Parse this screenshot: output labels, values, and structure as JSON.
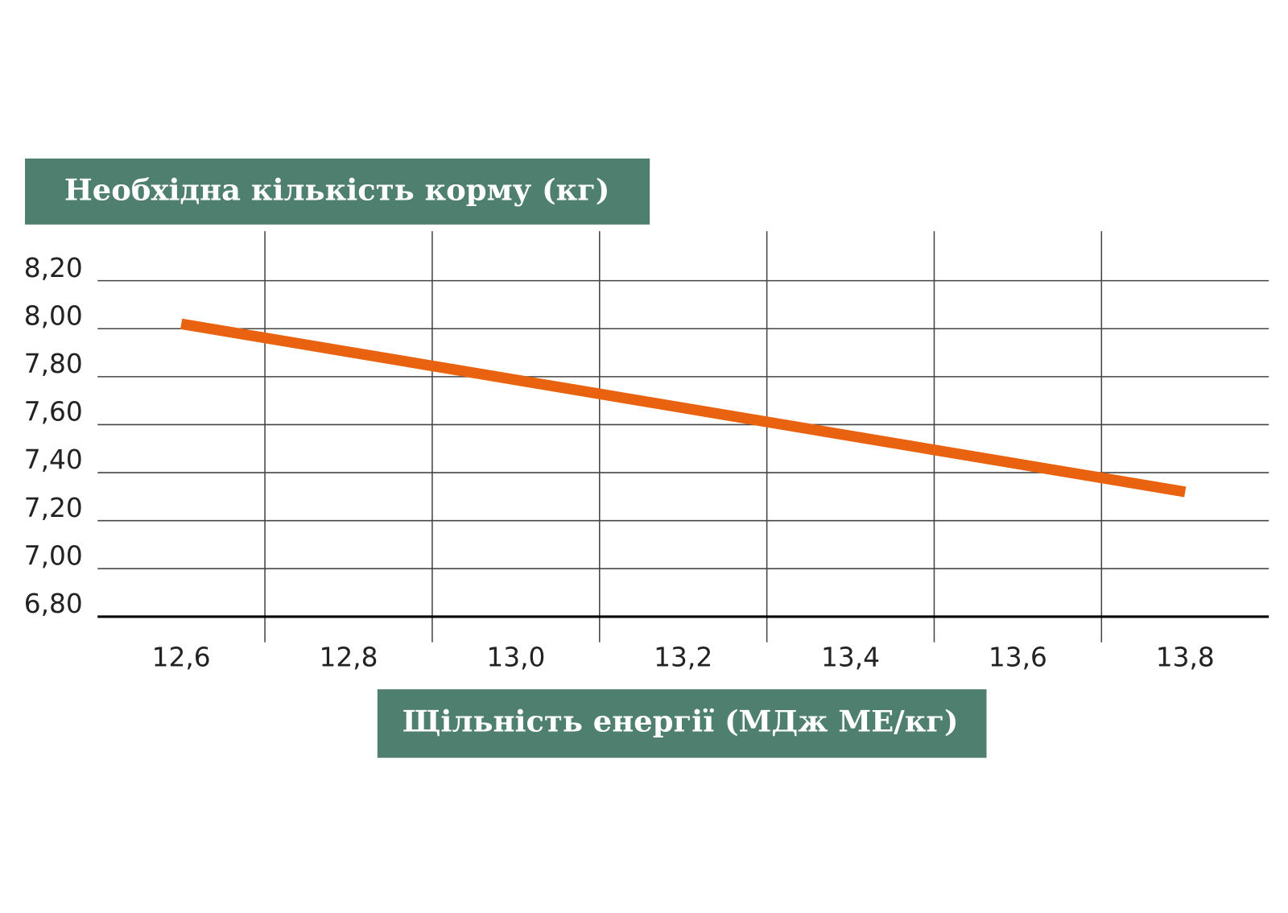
{
  "chart_data": {
    "type": "line",
    "y_label": "Необхідна кількість корму (кг)",
    "x_label": "Щільність енергії (МДж МЕ/кг)",
    "x": [
      12.6,
      13.8
    ],
    "values": [
      8.02,
      7.32
    ],
    "color": "#e8620f",
    "xlim": [
      12.5,
      13.9
    ],
    "xticks": [
      {
        "value": 12.6,
        "label": "12,6"
      },
      {
        "value": 12.8,
        "label": "12,8"
      },
      {
        "value": 13.0,
        "label": "13,0"
      },
      {
        "value": 13.2,
        "label": "13,2"
      },
      {
        "value": 13.4,
        "label": "13,4"
      },
      {
        "value": 13.6,
        "label": "13,6"
      },
      {
        "value": 13.8,
        "label": "13,8"
      }
    ],
    "xgrid": [
      12.7,
      12.9,
      13.1,
      13.3,
      13.5,
      13.7
    ],
    "ylim": [
      6.8,
      8.2
    ],
    "yticks": [
      {
        "value": 6.8,
        "label": "6,80"
      },
      {
        "value": 7.0,
        "label": "7,00"
      },
      {
        "value": 7.2,
        "label": "7,20"
      },
      {
        "value": 7.4,
        "label": "7,40"
      },
      {
        "value": 7.6,
        "label": "7,60"
      },
      {
        "value": 7.8,
        "label": "7,80"
      },
      {
        "value": 8.0,
        "label": "8,00"
      },
      {
        "value": 8.2,
        "label": "8,20"
      }
    ],
    "grid": true
  }
}
